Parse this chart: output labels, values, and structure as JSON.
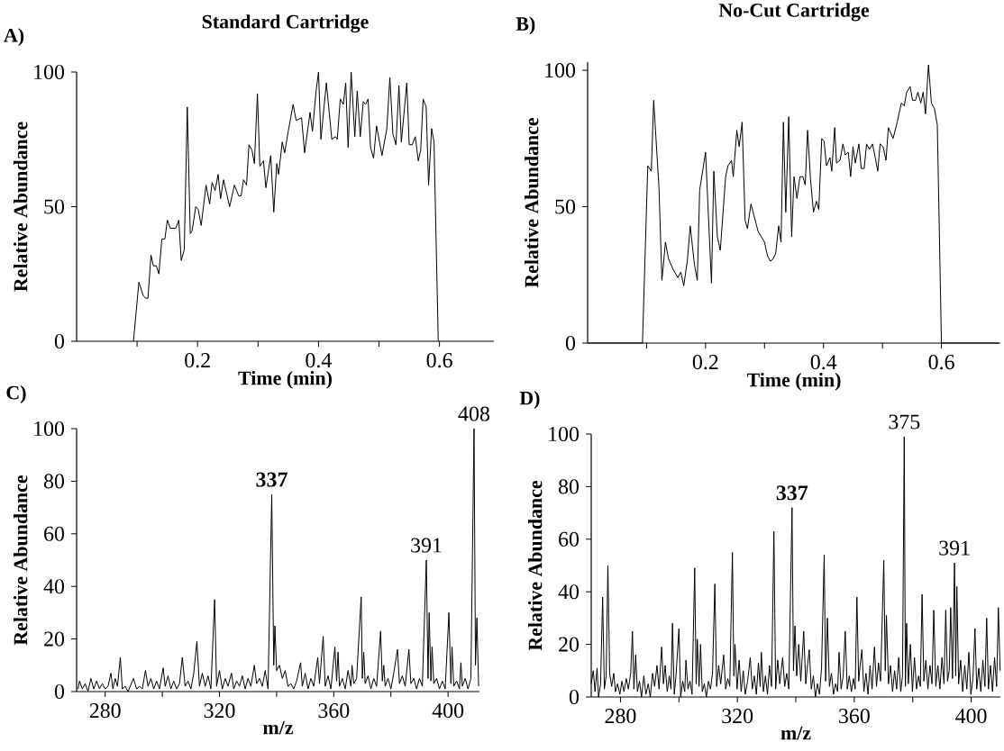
{
  "chart_data": [
    {
      "type": "line",
      "title": "Standard Cartridge",
      "xlabel": "Time (min)",
      "ylabel": "Relative Abundance",
      "color": "#000000",
      "annotations": [
        "A)"
      ],
      "xlim": [
        0,
        0.69
      ],
      "ylim": [
        0,
        100
      ],
      "xticks": [
        {
          "value": 0.1,
          "label": null
        },
        0.2,
        {
          "value": 0.3,
          "label": null
        },
        0.4,
        {
          "value": 0.5,
          "label": null
        },
        0.6
      ],
      "yticks": [
        0,
        50,
        100
      ],
      "x": [
        0.094,
        0.103,
        0.11,
        0.114,
        0.118,
        0.123,
        0.127,
        0.132,
        0.136,
        0.141,
        0.146,
        0.15,
        0.155,
        0.164,
        0.169,
        0.173,
        0.178,
        0.183,
        0.188,
        0.191,
        0.197,
        0.201,
        0.206,
        0.214,
        0.22,
        0.224,
        0.229,
        0.234,
        0.238,
        0.243,
        0.253,
        0.261,
        0.268,
        0.272,
        0.276,
        0.281,
        0.285,
        0.29,
        0.294,
        0.299,
        0.303,
        0.309,
        0.313,
        0.321,
        0.326,
        0.331,
        0.334,
        0.34,
        0.344,
        0.35,
        0.358,
        0.363,
        0.372,
        0.377,
        0.386,
        0.39,
        0.396,
        0.4,
        0.404,
        0.413,
        0.422,
        0.428,
        0.431,
        0.436,
        0.441,
        0.445,
        0.449,
        0.454,
        0.46,
        0.464,
        0.469,
        0.474,
        0.478,
        0.482,
        0.486,
        0.491,
        0.496,
        0.505,
        0.513,
        0.518,
        0.523,
        0.528,
        0.533,
        0.537,
        0.546,
        0.55,
        0.555,
        0.56,
        0.565,
        0.569,
        0.573,
        0.578,
        0.582,
        0.587,
        0.591,
        0.598
      ],
      "values": [
        0,
        22,
        17,
        16,
        16,
        32,
        28,
        28,
        25,
        38,
        38,
        45,
        42,
        42,
        45,
        30,
        34,
        87,
        40,
        41,
        50,
        49,
        43,
        58,
        51,
        59,
        56,
        62,
        53,
        60,
        50,
        58,
        54,
        54,
        60,
        58,
        73,
        71,
        66,
        92,
        65,
        67,
        57,
        69,
        48,
        66,
        62,
        74,
        70,
        78,
        88,
        82,
        83,
        70,
        85,
        78,
        93,
        100,
        75,
        96,
        75,
        76,
        75,
        90,
        88,
        96,
        72,
        100,
        76,
        93,
        76,
        89,
        88,
        90,
        72,
        68,
        80,
        69,
        79,
        98,
        77,
        73,
        95,
        74,
        96,
        73,
        73,
        76,
        67,
        71,
        90,
        87,
        58,
        79,
        74,
        0
      ]
    },
    {
      "type": "line",
      "title": "No-Cut Cartridge",
      "xlabel": "Time (min)",
      "ylabel": "Relative Abundance",
      "color": "#000000",
      "annotations": [
        "B)"
      ],
      "xlim": [
        0,
        0.7
      ],
      "ylim": [
        0,
        103
      ],
      "xticks": [
        {
          "value": 0.1,
          "label": null
        },
        0.2,
        {
          "value": 0.3,
          "label": null
        },
        0.4,
        {
          "value": 0.5,
          "label": null
        },
        0.6
      ],
      "yticks": [
        0,
        50,
        100
      ],
      "x": [
        0,
        0.093,
        0.102,
        0.108,
        0.112,
        0.121,
        0.126,
        0.132,
        0.137,
        0.145,
        0.153,
        0.158,
        0.163,
        0.169,
        0.174,
        0.181,
        0.186,
        0.19,
        0.2,
        0.21,
        0.214,
        0.22,
        0.225,
        0.234,
        0.238,
        0.244,
        0.247,
        0.253,
        0.257,
        0.262,
        0.267,
        0.271,
        0.277,
        0.289,
        0.3,
        0.305,
        0.31,
        0.315,
        0.319,
        0.324,
        0.328,
        0.332,
        0.336,
        0.341,
        0.346,
        0.35,
        0.355,
        0.36,
        0.365,
        0.369,
        0.373,
        0.378,
        0.383,
        0.388,
        0.392,
        0.397,
        0.401,
        0.405,
        0.411,
        0.414,
        0.419,
        0.422,
        0.428,
        0.433,
        0.437,
        0.442,
        0.446,
        0.45,
        0.454,
        0.46,
        0.464,
        0.469,
        0.473,
        0.478,
        0.483,
        0.486,
        0.492,
        0.496,
        0.501,
        0.506,
        0.51,
        0.518,
        0.525,
        0.532,
        0.537,
        0.541,
        0.547,
        0.551,
        0.556,
        0.56,
        0.565,
        0.569,
        0.573,
        0.578,
        0.583,
        0.588,
        0.593,
        0.6,
        0.697
      ],
      "values": [
        0,
        0,
        65,
        63,
        89,
        57,
        23,
        37,
        31,
        27,
        24,
        26,
        21,
        30,
        43,
        29,
        23,
        56,
        70,
        22,
        63,
        39,
        34,
        61,
        65,
        67,
        61,
        78,
        72,
        81,
        45,
        42,
        51,
        41,
        37,
        32,
        30,
        31,
        33,
        43,
        37,
        81,
        48,
        83,
        39,
        61,
        53,
        61,
        61,
        58,
        78,
        60,
        48,
        52,
        49,
        75,
        74,
        65,
        68,
        63,
        79,
        66,
        67,
        73,
        69,
        70,
        61,
        72,
        66,
        73,
        64,
        64,
        73,
        71,
        73,
        70,
        63,
        73,
        72,
        67,
        79,
        75,
        81,
        88,
        87,
        92,
        94,
        89,
        89,
        92,
        88,
        92,
        84,
        102,
        88,
        86,
        80,
        0,
        0
      ]
    },
    {
      "type": "line",
      "xlabel": "m/z",
      "ylabel": "Relative Abundance",
      "color": "#000000",
      "annotations": [
        "C)",
        {
          "text": "**337**",
          "x": 338.3,
          "y": 75
        },
        {
          "text": "408",
          "x": 409.1,
          "y": 100
        },
        {
          "text": "391",
          "x": 392.4,
          "y": 50
        }
      ],
      "xlim": [
        270,
        411
      ],
      "ylim": [
        0,
        100
      ],
      "xticks": [
        280,
        {
          "value": 300,
          "label": null
        },
        320,
        {
          "value": 340,
          "label": null
        },
        360,
        {
          "value": 380,
          "label": null
        },
        400
      ],
      "yticks": [
        0,
        20,
        40,
        60,
        80,
        100
      ],
      "x": [
        270.5,
        271,
        272,
        273,
        274,
        275,
        276,
        277,
        278,
        279,
        280,
        281,
        282,
        282.7,
        283.5,
        284.3,
        285.3,
        286,
        287,
        288,
        289.9,
        291,
        292,
        293,
        294.1,
        295,
        296,
        297,
        298,
        299,
        300.3,
        301,
        302,
        303,
        304,
        305,
        306,
        307,
        308,
        309,
        310,
        311,
        312.1,
        313,
        314,
        315,
        316,
        317,
        318.3,
        319,
        320,
        321,
        322,
        323,
        324.2,
        325,
        326,
        327,
        328,
        329,
        330,
        331,
        332.2,
        333,
        334,
        335,
        336,
        337,
        338.3,
        339,
        339.4,
        340,
        341,
        342,
        343,
        344,
        345,
        346,
        347,
        348.4,
        349,
        350,
        351,
        352,
        353,
        354.4,
        355,
        356.3,
        357,
        358,
        359,
        360.4,
        361,
        361.5,
        362,
        363,
        364,
        365,
        366,
        366.4,
        367,
        368,
        369.6,
        370,
        370.5,
        371,
        372,
        373,
        374,
        375,
        376.4,
        377,
        377.5,
        378,
        379,
        380,
        381,
        382.3,
        383,
        384,
        385,
        386.3,
        387,
        388,
        389,
        390,
        391,
        392.4,
        393,
        393.4,
        394,
        394.4,
        395,
        396,
        397,
        398,
        399,
        400.3,
        401,
        401.4,
        402,
        403,
        404,
        404.5,
        405,
        406,
        407,
        408,
        409.1,
        409.6,
        410.1,
        410.7
      ],
      "values": [
        1,
        4,
        1,
        3,
        0,
        5,
        1,
        4,
        1,
        3,
        1,
        2,
        7,
        1,
        5,
        2,
        13,
        1,
        2,
        0,
        5,
        1,
        2,
        1,
        8,
        2,
        5,
        1,
        4,
        1,
        9,
        2,
        6,
        1,
        4,
        1,
        3,
        13,
        2,
        4,
        1,
        7,
        19,
        2,
        7,
        2,
        6,
        1,
        35,
        2,
        8,
        1,
        5,
        2,
        7,
        1,
        4,
        2,
        6,
        1,
        5,
        2,
        10,
        3,
        5,
        2,
        8,
        1,
        75,
        10,
        25,
        8,
        10,
        5,
        8,
        2,
        3,
        1,
        4,
        11,
        2,
        7,
        1,
        5,
        2,
        13,
        3,
        21,
        2,
        6,
        1,
        17,
        4,
        15,
        2,
        5,
        1,
        8,
        2,
        10,
        3,
        5,
        36,
        5,
        15,
        3,
        6,
        1,
        5,
        2,
        23,
        4,
        10,
        2,
        5,
        1,
        7,
        16,
        3,
        6,
        2,
        16,
        3,
        5,
        1,
        5,
        2,
        50,
        5,
        30,
        4,
        17,
        3,
        5,
        1,
        4,
        1,
        30,
        3,
        17,
        2,
        4,
        1,
        11,
        2,
        5,
        1,
        5,
        100,
        10,
        28,
        2
      ]
    },
    {
      "type": "line",
      "xlabel": "m/z",
      "ylabel": "Relative Abundance",
      "color": "#000000",
      "annotations": [
        "D)",
        {
          "text": "**337**",
          "x": 338.7,
          "y": 72
        },
        {
          "text": "375",
          "x": 377.1,
          "y": 99
        },
        {
          "text": "391",
          "x": 394.3,
          "y": 51
        }
      ],
      "xlim": [
        270,
        410
      ],
      "ylim": [
        0,
        100
      ],
      "xticks": [
        280,
        {
          "value": 300,
          "label": null
        },
        320,
        {
          "value": 340,
          "label": null
        },
        360,
        {
          "value": 380,
          "label": null
        },
        400
      ],
      "yticks": [
        0,
        20,
        40,
        60,
        80,
        100
      ],
      "x": [
        270,
        270.7,
        271.3,
        272,
        272.5,
        273.2,
        273.9,
        274.5,
        275.1,
        275.7,
        276.3,
        277,
        277.7,
        278.3,
        279,
        279.8,
        280.5,
        281.2,
        282,
        282.7,
        283.5,
        284.1,
        284.6,
        285.2,
        285.8,
        286.5,
        287.2,
        288,
        288.7,
        289.5,
        290.2,
        291,
        291.7,
        292.5,
        293.2,
        294.1,
        294.7,
        295.3,
        296,
        296.7,
        297.3,
        297.8,
        298.4,
        299,
        300,
        300.6,
        301.3,
        302,
        302.4,
        303.1,
        303.8,
        304.5,
        305.4,
        305.9,
        306.3,
        306.9,
        307.4,
        308,
        308.7,
        309.4,
        310.1,
        310.8,
        311.5,
        312.3,
        312.9,
        313.6,
        314.3,
        315.3,
        316,
        316.7,
        317.4,
        318.3,
        318.8,
        319.2,
        319.9,
        320.6,
        321.3,
        322,
        322.7,
        323.5,
        324.4,
        325.1,
        325.8,
        326.5,
        327.2,
        327.8,
        328.2,
        328.9,
        329.6,
        330.3,
        331,
        331.7,
        332.5,
        333.1,
        333.8,
        334.5,
        335.5,
        336.2,
        336.9,
        337.6,
        338.7,
        339.2,
        339.7,
        340.3,
        341,
        341.7,
        342.7,
        343.4,
        344,
        344.6,
        345.3,
        346,
        346.7,
        347.4,
        348.1,
        348.8,
        349.7,
        350.2,
        350.8,
        351.5,
        352.2,
        352.9,
        353.6,
        354.3,
        354.8,
        355.5,
        356.2,
        356.9,
        357.6,
        358.3,
        359,
        359.7,
        360.3,
        360.9,
        361.5,
        362,
        362.6,
        363.3,
        364,
        364.7,
        365.4,
        366.1,
        366.9,
        367.6,
        368.3,
        369,
        370.1,
        370.6,
        371,
        371.7,
        372.4,
        373.1,
        373.8,
        374.5,
        375.2,
        375.9,
        376.5,
        377.1,
        377.5,
        377.9,
        378.5,
        379.2,
        379.9,
        380.6,
        381.3,
        382,
        382.6,
        383.2,
        383.8,
        384.5,
        385.2,
        385.9,
        386.6,
        387.2,
        387.9,
        388.6,
        389.3,
        390,
        390.7,
        391.3,
        391.9,
        392.5,
        393,
        393.6,
        394.3,
        394.7,
        395.1,
        395.7,
        396.4,
        397.1,
        397.8,
        398.5,
        399.2,
        399.9,
        400.6,
        401.3,
        401.9,
        402.6,
        403.3,
        404,
        404.7,
        405.3,
        405.9,
        406.6,
        407.3,
        408,
        408.7,
        409.3,
        409.9
      ],
      "values": [
        5,
        10,
        2,
        11,
        0,
        5,
        38,
        3,
        8,
        50,
        9,
        4,
        9,
        2,
        5,
        1,
        6,
        2,
        7,
        3,
        9,
        25,
        3,
        16,
        2,
        6,
        0,
        8,
        1,
        5,
        0,
        9,
        4,
        12,
        3,
        19,
        5,
        12,
        2,
        8,
        3,
        28,
        1,
        8,
        26,
        0,
        6,
        2,
        14,
        3,
        6,
        1,
        49,
        5,
        22,
        4,
        20,
        2,
        5,
        0,
        6,
        3,
        9,
        43,
        4,
        12,
        5,
        16,
        3,
        7,
        4,
        55,
        8,
        20,
        3,
        14,
        2,
        10,
        1,
        6,
        15,
        3,
        8,
        1,
        13,
        4,
        17,
        2,
        8,
        1,
        12,
        4,
        63,
        3,
        14,
        5,
        15,
        4,
        9,
        3,
        72,
        10,
        27,
        8,
        20,
        6,
        25,
        5,
        12,
        18,
        3,
        8,
        0,
        5,
        1,
        11,
        54,
        6,
        30,
        4,
        9,
        1,
        5,
        2,
        17,
        3,
        8,
        25,
        3,
        8,
        2,
        7,
        3,
        38,
        6,
        12,
        18,
        2,
        9,
        1,
        12,
        3,
        19,
        4,
        13,
        6,
        52,
        10,
        31,
        5,
        12,
        2,
        10,
        3,
        15,
        2,
        8,
        99,
        4,
        28,
        5,
        20,
        2,
        15,
        3,
        8,
        4,
        39,
        6,
        14,
        3,
        12,
        5,
        33,
        4,
        12,
        3,
        15,
        5,
        33,
        6,
        10,
        34,
        7,
        51,
        8,
        42,
        5,
        14,
        2,
        12,
        3,
        17,
        1,
        7,
        26,
        3,
        11,
        2,
        14,
        4,
        30,
        3,
        12,
        2,
        15,
        4,
        34,
        10
      ]
    }
  ]
}
